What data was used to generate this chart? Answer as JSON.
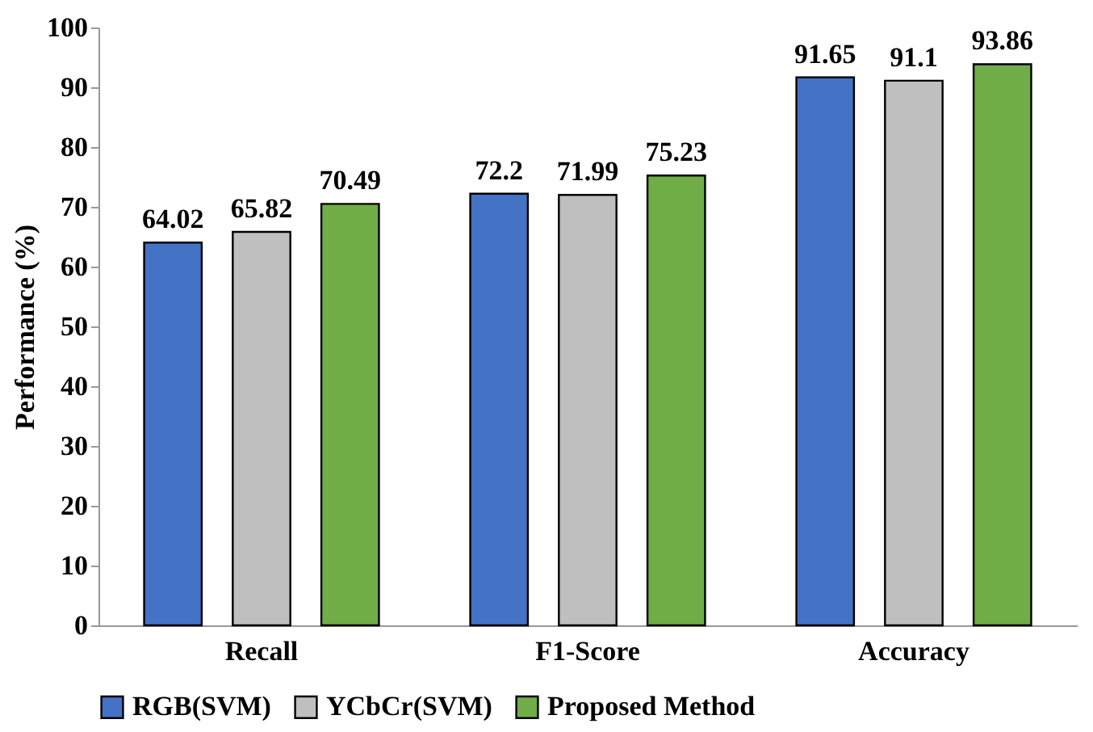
{
  "chart_data": {
    "type": "bar",
    "ylabel": "Performance (%)",
    "categories": [
      "Recall",
      "F1-Score",
      "Accuracy"
    ],
    "series": [
      {
        "name": "RGB(SVM)",
        "color": "#4472c4",
        "values": [
          64.02,
          72.2,
          91.65
        ]
      },
      {
        "name": "YCbCr(SVM)",
        "color": "#bfbfbf",
        "values": [
          65.82,
          71.99,
          91.1
        ]
      },
      {
        "name": "Proposed Method",
        "color": "#70ad47",
        "values": [
          70.49,
          75.23,
          93.86
        ]
      }
    ],
    "ylim": [
      0,
      100
    ],
    "yticks": [
      0,
      10,
      20,
      30,
      40,
      50,
      60,
      70,
      80,
      90,
      100
    ],
    "data_labels": true,
    "legend": "bottom",
    "grid": false
  }
}
